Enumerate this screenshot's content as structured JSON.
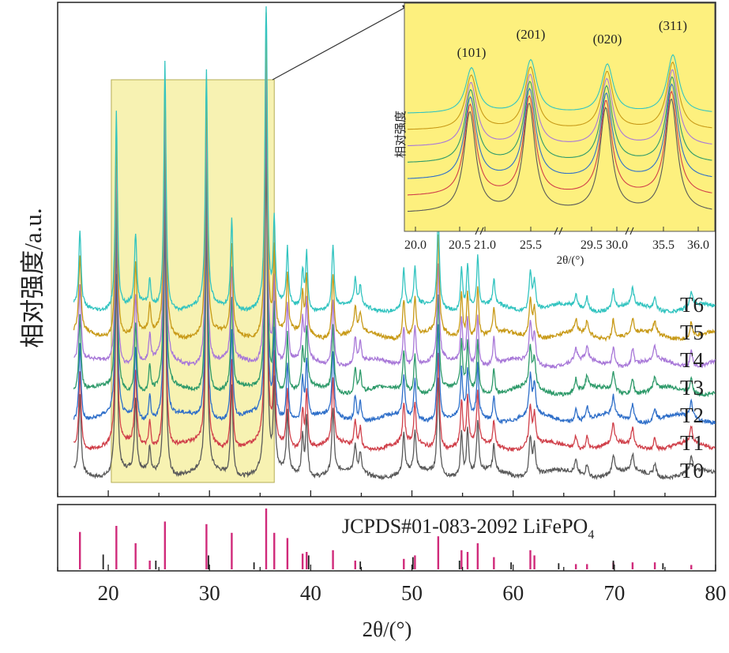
{
  "chart_data": {
    "type": "line",
    "title": "",
    "xlabel": "2θ/(°)",
    "ylabel": "相对强度/a.u.",
    "xlim": [
      15,
      80
    ],
    "xticks": [
      20,
      30,
      40,
      50,
      60,
      70,
      80
    ],
    "main_peaks": [
      {
        "x": 17.2,
        "h": 0.24,
        "w": 0.13
      },
      {
        "x": 20.8,
        "h": 0.62,
        "w": 0.13
      },
      {
        "x": 22.7,
        "h": 0.22,
        "w": 0.13
      },
      {
        "x": 24.1,
        "h": 0.08,
        "w": 0.12
      },
      {
        "x": 25.6,
        "h": 0.78,
        "w": 0.13
      },
      {
        "x": 29.7,
        "h": 0.74,
        "w": 0.13
      },
      {
        "x": 32.2,
        "h": 0.28,
        "w": 0.13
      },
      {
        "x": 35.6,
        "h": 1.0,
        "w": 0.13
      },
      {
        "x": 36.4,
        "h": 0.26,
        "w": 0.12
      },
      {
        "x": 37.7,
        "h": 0.18,
        "w": 0.12
      },
      {
        "x": 39.2,
        "h": 0.12,
        "w": 0.12
      },
      {
        "x": 39.6,
        "h": 0.18,
        "w": 0.12
      },
      {
        "x": 42.2,
        "h": 0.2,
        "w": 0.13
      },
      {
        "x": 44.4,
        "h": 0.08,
        "w": 0.13
      },
      {
        "x": 44.9,
        "h": 0.06,
        "w": 0.13
      },
      {
        "x": 49.2,
        "h": 0.12,
        "w": 0.13
      },
      {
        "x": 50.3,
        "h": 0.12,
        "w": 0.13
      },
      {
        "x": 52.6,
        "h": 0.3,
        "w": 0.13
      },
      {
        "x": 54.9,
        "h": 0.14,
        "w": 0.12
      },
      {
        "x": 55.5,
        "h": 0.14,
        "w": 0.12
      },
      {
        "x": 56.5,
        "h": 0.16,
        "w": 0.12
      },
      {
        "x": 58.1,
        "h": 0.08,
        "w": 0.12
      },
      {
        "x": 61.7,
        "h": 0.12,
        "w": 0.15
      },
      {
        "x": 62.1,
        "h": 0.09,
        "w": 0.15
      },
      {
        "x": 66.2,
        "h": 0.04,
        "w": 0.15
      },
      {
        "x": 67.3,
        "h": 0.04,
        "w": 0.15
      },
      {
        "x": 69.9,
        "h": 0.06,
        "w": 0.15
      },
      {
        "x": 71.8,
        "h": 0.05,
        "w": 0.15
      },
      {
        "x": 74.0,
        "h": 0.04,
        "w": 0.15
      },
      {
        "x": 77.6,
        "h": 0.05,
        "w": 0.15
      }
    ],
    "series": [
      {
        "name": "T0",
        "color": "#5a5a5a",
        "offset": 0
      },
      {
        "name": "T1",
        "color": "#d0404a",
        "offset": 1
      },
      {
        "name": "T2",
        "color": "#2f6fc9",
        "offset": 2
      },
      {
        "name": "T3",
        "color": "#2e9a6a",
        "offset": 3
      },
      {
        "name": "T4",
        "color": "#a878d8",
        "offset": 4
      },
      {
        "name": "T5",
        "color": "#c89a18",
        "offset": 5
      },
      {
        "name": "T6",
        "color": "#33c4c0",
        "offset": 6
      }
    ],
    "highlight_box": {
      "x_range": [
        20.3,
        36.4
      ]
    },
    "inset": {
      "ylabel": "相对强度",
      "xlabel": "2θ/(°)",
      "segment_ticks": [
        "20.0",
        "20.5",
        "21.0",
        "25.5",
        "29.5",
        "30.0",
        "35.5",
        "36.0"
      ],
      "peak_labels": [
        "(101)",
        "(201)",
        "(020)",
        "(311)"
      ],
      "background": "#fdf07e"
    },
    "reference": {
      "label": "JCPDS#01-083-2092 LiFePO",
      "label_subscript": "4",
      "color": "#d02a7a",
      "black_color": "#222222",
      "sticks": [
        {
          "x": 17.2,
          "i": 0.43
        },
        {
          "x": 20.8,
          "i": 0.5
        },
        {
          "x": 22.7,
          "i": 0.3
        },
        {
          "x": 24.1,
          "i": 0.1
        },
        {
          "x": 25.6,
          "i": 0.55
        },
        {
          "x": 29.7,
          "i": 0.52
        },
        {
          "x": 32.2,
          "i": 0.42
        },
        {
          "x": 35.6,
          "i": 0.7
        },
        {
          "x": 36.4,
          "i": 0.42
        },
        {
          "x": 37.7,
          "i": 0.36
        },
        {
          "x": 39.2,
          "i": 0.18
        },
        {
          "x": 39.6,
          "i": 0.2
        },
        {
          "x": 42.2,
          "i": 0.22
        },
        {
          "x": 44.4,
          "i": 0.1
        },
        {
          "x": 49.2,
          "i": 0.12
        },
        {
          "x": 50.3,
          "i": 0.16
        },
        {
          "x": 52.6,
          "i": 0.38
        },
        {
          "x": 54.9,
          "i": 0.22
        },
        {
          "x": 55.5,
          "i": 0.2
        },
        {
          "x": 56.5,
          "i": 0.3
        },
        {
          "x": 58.1,
          "i": 0.14
        },
        {
          "x": 61.7,
          "i": 0.22
        },
        {
          "x": 62.1,
          "i": 0.16
        },
        {
          "x": 66.2,
          "i": 0.06
        },
        {
          "x": 67.3,
          "i": 0.06
        },
        {
          "x": 69.9,
          "i": 0.08
        },
        {
          "x": 71.8,
          "i": 0.08
        },
        {
          "x": 74.0,
          "i": 0.08
        },
        {
          "x": 77.6,
          "i": 0.05
        }
      ],
      "black_sticks": [
        {
          "x": 19.5,
          "i": 0.17
        },
        {
          "x": 24.7,
          "i": 0.1
        },
        {
          "x": 29.9,
          "i": 0.16
        },
        {
          "x": 34.4,
          "i": 0.08
        },
        {
          "x": 39.8,
          "i": 0.16
        },
        {
          "x": 44.9,
          "i": 0.09
        },
        {
          "x": 50.1,
          "i": 0.14
        },
        {
          "x": 54.7,
          "i": 0.1
        },
        {
          "x": 59.8,
          "i": 0.08
        },
        {
          "x": 64.5,
          "i": 0.07
        },
        {
          "x": 69.9,
          "i": 0.1
        },
        {
          "x": 74.8,
          "i": 0.07
        }
      ]
    }
  }
}
